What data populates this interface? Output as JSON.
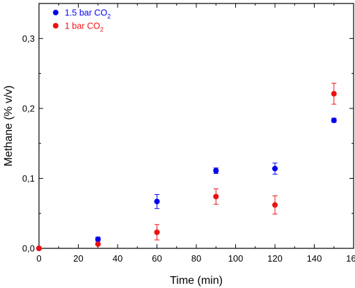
{
  "chart_data": {
    "type": "scatter",
    "xlabel": "Time (min)",
    "ylabel": "Methane (% v/v)",
    "xlim": [
      0,
      160
    ],
    "ylim": [
      0,
      0.35
    ],
    "x_ticks": [
      0,
      20,
      40,
      60,
      80,
      100,
      120,
      140,
      160
    ],
    "x_tick_labels": [
      "0",
      "20",
      "40",
      "60",
      "80",
      "100",
      "120",
      "140",
      "160"
    ],
    "y_ticks": [
      0,
      0.1,
      0.2,
      0.3
    ],
    "y_tick_labels": [
      "0,0",
      "0,1",
      "0,2",
      "0,3"
    ],
    "grid": false,
    "legend_position": "top-left",
    "series": [
      {
        "name": "1.5 bar CO2",
        "label_main": "1.5 bar CO",
        "label_sub": "2",
        "color": "#0000ee",
        "x": [
          0,
          30,
          60,
          90,
          120,
          150
        ],
        "y": [
          0.0,
          0.013,
          0.067,
          0.111,
          0.114,
          0.183
        ],
        "err": [
          0.0,
          0.003,
          0.01,
          0.004,
          0.008,
          0.003
        ]
      },
      {
        "name": "1 bar CO2",
        "label_main": "1 bar CO",
        "label_sub": "2",
        "color": "#ee1111",
        "x": [
          0,
          30,
          60,
          90,
          120,
          150
        ],
        "y": [
          0.0,
          0.006,
          0.023,
          0.074,
          0.062,
          0.221
        ],
        "err": [
          0.0,
          0.001,
          0.011,
          0.011,
          0.013,
          0.015
        ]
      }
    ]
  }
}
